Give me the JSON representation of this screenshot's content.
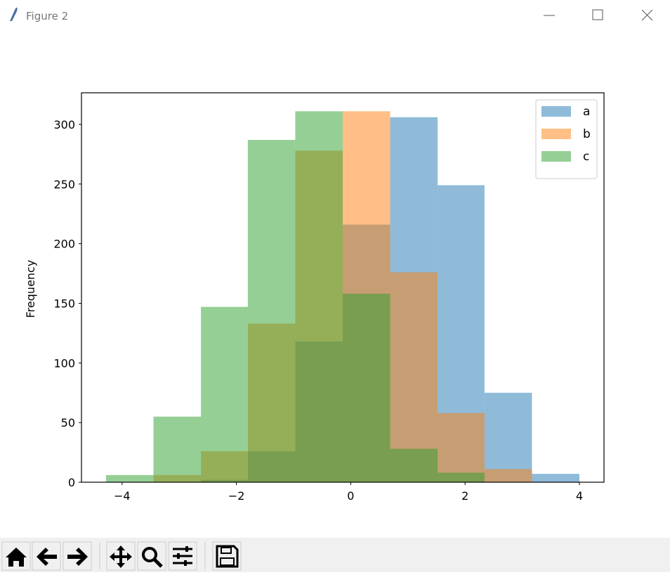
{
  "window": {
    "title": "Figure 2"
  },
  "chart_data": {
    "type": "histogram",
    "ylabel": "Frequency",
    "bins": [
      -4.28,
      -3.45,
      -2.62,
      -1.8,
      -0.97,
      -0.14,
      0.69,
      1.52,
      2.34,
      3.17,
      4.0
    ],
    "series": [
      {
        "name": "a",
        "color": "#1f77b4",
        "values": [
          0,
          0,
          2,
          26,
          118,
          216,
          306,
          249,
          75,
          7
        ]
      },
      {
        "name": "b",
        "color": "#ff7f0e",
        "values": [
          0,
          6,
          26,
          133,
          278,
          311,
          176,
          58,
          11,
          0
        ]
      },
      {
        "name": "c",
        "color": "#2ca02c",
        "values": [
          6,
          55,
          147,
          287,
          311,
          158,
          28,
          8,
          0,
          0
        ]
      }
    ],
    "alpha": 0.5,
    "xlim": [
      -4.71,
      4.43
    ],
    "ylim": [
      0,
      326.5
    ],
    "xticks": [
      {
        "value": -4,
        "label": "−4"
      },
      {
        "value": -2,
        "label": "−2"
      },
      0,
      2,
      4
    ],
    "yticks": [
      0,
      50,
      100,
      150,
      200,
      250,
      300
    ],
    "legend": "upper right"
  }
}
